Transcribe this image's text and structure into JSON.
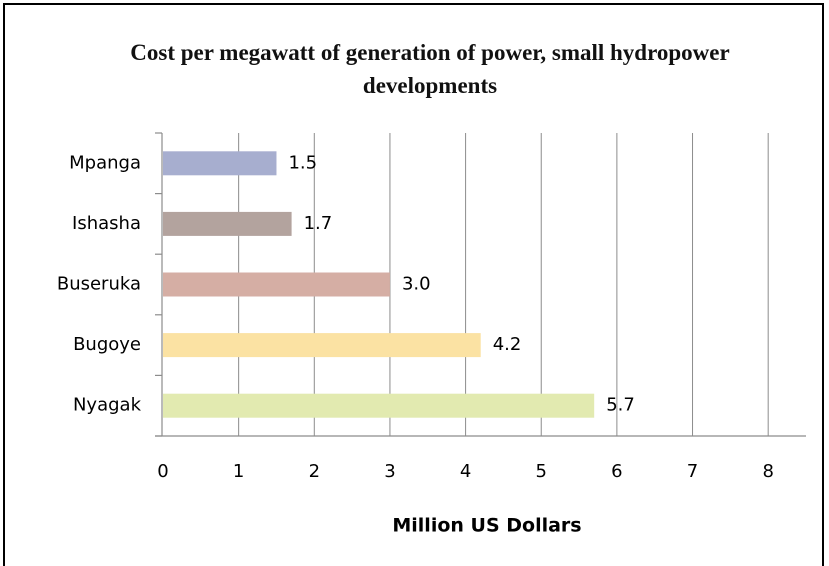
{
  "chart_data": {
    "type": "bar",
    "orientation": "horizontal",
    "title": "Cost per megawatt of generation of power, small hydropower developments",
    "xlabel": "Million US Dollars",
    "categories": [
      "Mpanga",
      "Ishasha",
      "Buseruka",
      "Bugoye",
      "Nyagak"
    ],
    "values": [
      1.5,
      1.7,
      3.0,
      4.2,
      5.7
    ],
    "value_labels": [
      "1.5",
      "1.7",
      "3.0",
      "4.2",
      "5.7"
    ],
    "colors": [
      "#a7aecf",
      "#b3a39e",
      "#d5aea4",
      "#fbe2a3",
      "#e2eab0"
    ],
    "xlim": [
      0,
      8.5
    ],
    "xticks": [
      0,
      1,
      2,
      3,
      4,
      5,
      6,
      7,
      8
    ],
    "grid": true
  }
}
